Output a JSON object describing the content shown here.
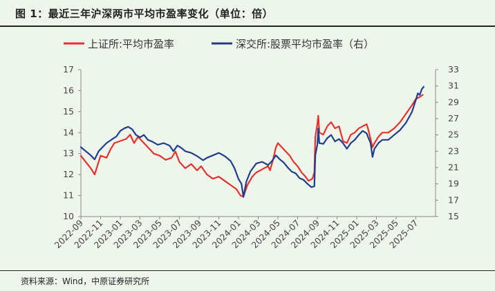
{
  "header": {
    "title": "图 1：最近三年沪深两市平均市盈率变化（单位：倍）"
  },
  "footer": {
    "source": "资料来源：Wind，中原证券研究所"
  },
  "colors": {
    "sse": "#e4312b",
    "szse": "#1e3c8c",
    "background": "#eef6ec"
  },
  "chart_data": {
    "type": "line",
    "title": "最近三年沪深两市平均市盈率变化（单位：倍）",
    "x_ticks": [
      "2022-09",
      "2022-11",
      "2023-01",
      "2023-03",
      "2023-05",
      "2023-07",
      "2023-09",
      "2023-11",
      "2024-01",
      "2024-03",
      "2024-05",
      "2024-07",
      "2024-09",
      "2024-11",
      "2025-01",
      "2025-03",
      "2025-05",
      "2025-07"
    ],
    "y_left": {
      "min": 10,
      "max": 17,
      "ticks": [
        10,
        11,
        12,
        13,
        14,
        15,
        16,
        17
      ]
    },
    "y_right": {
      "min": 15,
      "max": 33,
      "ticks": [
        15,
        17,
        19,
        21,
        23,
        25,
        27,
        29,
        31,
        33
      ]
    },
    "series": [
      {
        "name": "上证所:平均市盈率",
        "axis": "left",
        "color": "#e4312b",
        "points": [
          [
            0,
            12.9
          ],
          [
            0.25,
            12.6
          ],
          [
            0.5,
            12.3
          ],
          [
            0.7,
            12.0
          ],
          [
            1.0,
            12.9
          ],
          [
            1.3,
            12.8
          ],
          [
            1.5,
            13.2
          ],
          [
            1.7,
            13.5
          ],
          [
            2.0,
            13.6
          ],
          [
            2.3,
            13.7
          ],
          [
            2.5,
            13.9
          ],
          [
            2.7,
            13.5
          ],
          [
            2.9,
            13.8
          ],
          [
            3.2,
            13.5
          ],
          [
            3.5,
            13.2
          ],
          [
            3.7,
            13.0
          ],
          [
            4.0,
            12.9
          ],
          [
            4.3,
            12.7
          ],
          [
            4.6,
            12.8
          ],
          [
            4.8,
            13.1
          ],
          [
            5.0,
            12.6
          ],
          [
            5.3,
            12.3
          ],
          [
            5.6,
            12.5
          ],
          [
            5.9,
            12.2
          ],
          [
            6.1,
            12.4
          ],
          [
            6.4,
            12.0
          ],
          [
            6.7,
            11.8
          ],
          [
            7.0,
            11.9
          ],
          [
            7.3,
            11.7
          ],
          [
            7.6,
            11.5
          ],
          [
            7.9,
            11.3
          ],
          [
            8.1,
            11.0
          ],
          [
            8.25,
            10.95
          ],
          [
            8.45,
            11.5
          ],
          [
            8.7,
            11.9
          ],
          [
            8.9,
            12.1
          ],
          [
            9.1,
            12.2
          ],
          [
            9.3,
            12.3
          ],
          [
            9.5,
            12.4
          ],
          [
            9.6,
            12.2
          ],
          [
            9.75,
            12.7
          ],
          [
            9.9,
            13.3
          ],
          [
            10.0,
            13.5
          ],
          [
            10.2,
            13.3
          ],
          [
            10.4,
            13.1
          ],
          [
            10.6,
            12.9
          ],
          [
            10.8,
            12.6
          ],
          [
            11.0,
            12.4
          ],
          [
            11.2,
            12.1
          ],
          [
            11.4,
            11.9
          ],
          [
            11.55,
            11.7
          ],
          [
            11.75,
            11.8
          ],
          [
            11.85,
            12.1
          ],
          [
            11.9,
            13.8
          ],
          [
            12.0,
            14.4
          ],
          [
            12.05,
            14.8
          ],
          [
            12.1,
            14.0
          ],
          [
            12.3,
            13.9
          ],
          [
            12.5,
            14.3
          ],
          [
            12.7,
            14.5
          ],
          [
            12.9,
            14.2
          ],
          [
            13.1,
            14.3
          ],
          [
            13.3,
            13.6
          ],
          [
            13.5,
            13.5
          ],
          [
            13.7,
            13.9
          ],
          [
            13.9,
            14.0
          ],
          [
            14.1,
            14.2
          ],
          [
            14.3,
            14.3
          ],
          [
            14.5,
            14.4
          ],
          [
            14.6,
            14.1
          ],
          [
            14.7,
            13.7
          ],
          [
            14.8,
            13.3
          ],
          [
            14.9,
            13.5
          ],
          [
            15.1,
            13.8
          ],
          [
            15.3,
            14.0
          ],
          [
            15.6,
            14.0
          ],
          [
            15.9,
            14.2
          ],
          [
            16.2,
            14.5
          ],
          [
            16.5,
            14.9
          ],
          [
            16.8,
            15.3
          ],
          [
            17.0,
            15.6
          ],
          [
            17.2,
            15.7
          ],
          [
            17.35,
            15.8
          ]
        ]
      },
      {
        "name": "深交所:股票平均市盈率（右）",
        "axis": "right",
        "color": "#1e3c8c",
        "points": [
          [
            0,
            23.5
          ],
          [
            0.25,
            23.0
          ],
          [
            0.5,
            22.5
          ],
          [
            0.7,
            22.0
          ],
          [
            0.9,
            23.0
          ],
          [
            1.1,
            23.5
          ],
          [
            1.3,
            24.0
          ],
          [
            1.6,
            24.5
          ],
          [
            1.8,
            24.8
          ],
          [
            2.0,
            25.5
          ],
          [
            2.2,
            25.8
          ],
          [
            2.4,
            26.0
          ],
          [
            2.6,
            25.7
          ],
          [
            2.8,
            25.0
          ],
          [
            3.0,
            24.7
          ],
          [
            3.2,
            25.0
          ],
          [
            3.4,
            24.4
          ],
          [
            3.6,
            24.2
          ],
          [
            3.9,
            23.8
          ],
          [
            4.2,
            24.0
          ],
          [
            4.5,
            23.7
          ],
          [
            4.7,
            23.0
          ],
          [
            4.9,
            23.7
          ],
          [
            5.1,
            23.4
          ],
          [
            5.3,
            23.0
          ],
          [
            5.6,
            22.8
          ],
          [
            5.9,
            22.4
          ],
          [
            6.2,
            21.9
          ],
          [
            6.4,
            22.2
          ],
          [
            6.7,
            22.5
          ],
          [
            7.0,
            22.8
          ],
          [
            7.3,
            22.4
          ],
          [
            7.6,
            21.8
          ],
          [
            7.8,
            20.9
          ],
          [
            8.0,
            19.6
          ],
          [
            8.15,
            19.0
          ],
          [
            8.25,
            17.4
          ],
          [
            8.4,
            19.3
          ],
          [
            8.6,
            20.5
          ],
          [
            8.9,
            21.5
          ],
          [
            9.2,
            21.7
          ],
          [
            9.5,
            21.3
          ],
          [
            9.7,
            21.8
          ],
          [
            9.9,
            22.5
          ],
          [
            10.1,
            22.0
          ],
          [
            10.3,
            21.6
          ],
          [
            10.5,
            21.0
          ],
          [
            10.7,
            20.5
          ],
          [
            10.9,
            20.3
          ],
          [
            11.1,
            19.7
          ],
          [
            11.3,
            19.5
          ],
          [
            11.5,
            19.0
          ],
          [
            11.7,
            18.6
          ],
          [
            11.85,
            18.7
          ],
          [
            11.9,
            22.5
          ],
          [
            12.0,
            23.8
          ],
          [
            12.05,
            25.8
          ],
          [
            12.1,
            24.0
          ],
          [
            12.3,
            23.9
          ],
          [
            12.5,
            24.6
          ],
          [
            12.7,
            25.0
          ],
          [
            12.9,
            24.2
          ],
          [
            13.1,
            24.5
          ],
          [
            13.3,
            24.0
          ],
          [
            13.5,
            23.3
          ],
          [
            13.7,
            24.0
          ],
          [
            13.9,
            24.4
          ],
          [
            14.1,
            25.0
          ],
          [
            14.3,
            25.5
          ],
          [
            14.5,
            25.2
          ],
          [
            14.6,
            24.6
          ],
          [
            14.7,
            24.0
          ],
          [
            14.8,
            22.3
          ],
          [
            14.9,
            23.3
          ],
          [
            15.1,
            24.0
          ],
          [
            15.3,
            24.4
          ],
          [
            15.6,
            24.4
          ],
          [
            15.9,
            25.0
          ],
          [
            16.2,
            25.6
          ],
          [
            16.5,
            26.5
          ],
          [
            16.8,
            27.8
          ],
          [
            17.0,
            29.3
          ],
          [
            17.1,
            30.1
          ],
          [
            17.2,
            29.9
          ],
          [
            17.3,
            30.6
          ],
          [
            17.4,
            30.9
          ]
        ]
      }
    ]
  }
}
